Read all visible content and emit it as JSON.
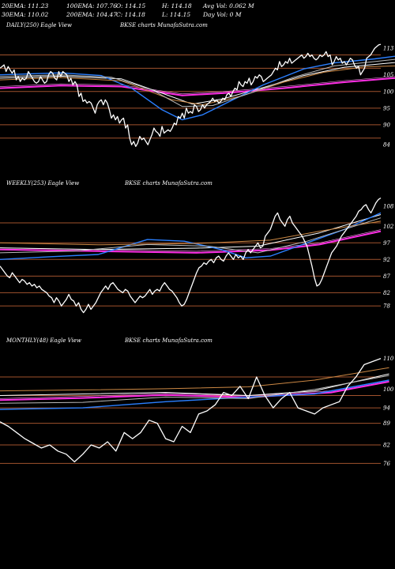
{
  "header": {
    "line1": [
      "20EMA: 111.23",
      "100EMA: 107.76",
      "O: 114.15",
      "H: 114.18",
      "Avg Vol: 0.062  M"
    ],
    "line2": [
      "30EMA: 110.02",
      "200EMA: 104.47",
      "C: 114.18",
      "L: 114.15",
      "Day Vol: 0  M"
    ]
  },
  "panels": [
    {
      "name": "daily",
      "label": "DAILY(250) Eagle  View",
      "watermark": "BKSE charts MunafaSutra.com",
      "ylim": [
        80,
        118
      ],
      "ticks": [
        113,
        105,
        100,
        95,
        90,
        84
      ],
      "gridlines": [
        111,
        107,
        100,
        95,
        90,
        86
      ],
      "price": [
        107,
        107.5,
        108,
        106,
        107.5,
        106.5,
        105.5,
        106.5,
        103.5,
        104.5,
        103,
        104,
        103.5,
        104,
        106,
        105,
        104,
        103,
        102.5,
        103,
        104.5,
        103.5,
        102.5,
        103,
        105,
        106,
        105.5,
        104,
        103.5,
        106,
        104.5,
        106,
        105.5,
        105,
        103,
        104,
        102,
        103,
        102,
        98.5,
        99.5,
        97,
        97.5,
        96.5,
        97,
        96.5,
        95,
        93.5,
        96,
        97,
        97.5,
        96,
        97.5,
        96.5,
        94.5,
        92,
        93,
        91.5,
        92.5,
        90.5,
        91.5,
        92,
        89,
        90,
        86,
        84,
        85,
        83.5,
        84.5,
        86.5,
        85.5,
        86,
        85,
        84,
        85.5,
        87,
        89,
        88,
        87.5,
        86.5,
        89.5,
        87.5,
        88,
        88.5,
        88,
        89,
        90.5,
        90,
        92.5,
        92,
        93.5,
        92,
        95,
        93.5,
        94,
        93.5,
        96,
        95.5,
        94,
        94.5,
        96,
        95,
        96,
        96.5,
        97,
        98,
        97,
        97.5,
        96.5,
        97,
        98,
        97.5,
        99,
        99.5,
        98.5,
        100,
        101,
        100.5,
        103,
        102,
        101.5,
        103,
        102.5,
        104,
        102,
        103,
        104.5,
        104,
        105,
        104.5,
        103,
        103.5,
        104,
        104.5,
        105,
        106,
        107,
        106.5,
        109,
        107.5,
        108,
        109,
        108.5,
        110,
        108.5,
        109,
        109.5,
        110,
        110.5,
        111,
        110,
        110.5,
        111.5,
        110.5,
        111,
        110,
        109.5,
        110,
        111,
        110.5,
        111,
        112,
        110.5,
        111,
        108,
        109,
        110.5,
        109.5,
        110,
        108.5,
        109,
        108,
        109,
        110,
        109.5,
        108,
        107,
        107.5,
        105,
        106,
        107,
        110,
        110.5,
        111,
        112,
        113,
        113.5,
        114,
        114.18
      ],
      "sma": [
        {
          "color": "#ff2ee6",
          "width": 2.0,
          "values": [
            [
              0,
              101
            ],
            [
              30,
              101.8
            ],
            [
              60,
              101.5
            ],
            [
              90,
              98.8
            ],
            [
              110,
              99.5
            ],
            [
              140,
              101
            ],
            [
              170,
              102.8
            ],
            [
              200,
              104.3
            ]
          ]
        },
        {
          "color": "#ffffff",
          "width": 1.0,
          "values": [
            [
              0,
              104
            ],
            [
              30,
              104.6
            ],
            [
              60,
              103.8
            ],
            [
              80,
              99.5
            ],
            [
              95,
              96.2
            ],
            [
              110,
              97.8
            ],
            [
              130,
              101.2
            ],
            [
              150,
              104.8
            ],
            [
              170,
              107.3
            ],
            [
              200,
              109
            ]
          ]
        },
        {
          "color": "#2a7fff",
          "width": 1.4,
          "values": [
            [
              0,
              105
            ],
            [
              30,
              105.6
            ],
            [
              50,
              104.8
            ],
            [
              65,
              101
            ],
            [
              80,
              94.5
            ],
            [
              90,
              91.5
            ],
            [
              100,
              93
            ],
            [
              115,
              97.5
            ],
            [
              130,
              102
            ],
            [
              150,
              106.8
            ],
            [
              165,
              108.6
            ],
            [
              185,
              109.8
            ],
            [
              200,
              111
            ]
          ]
        },
        {
          "color": "#cc8844",
          "width": 1.0,
          "values": [
            [
              0,
              103.5
            ],
            [
              30,
              104.2
            ],
            [
              60,
              103.2
            ],
            [
              85,
              97.5
            ],
            [
              100,
              96
            ],
            [
              120,
              98.8
            ],
            [
              140,
              102.8
            ],
            [
              160,
              105.8
            ],
            [
              180,
              107.4
            ],
            [
              200,
              107.8
            ]
          ]
        },
        {
          "color": "#bbbbbb",
          "width": 1.0,
          "values": [
            [
              0,
              104.5
            ],
            [
              30,
              105
            ],
            [
              55,
              104.3
            ],
            [
              75,
              100.5
            ],
            [
              90,
              95.5
            ],
            [
              105,
              95.8
            ],
            [
              125,
              99.8
            ],
            [
              145,
              104.3
            ],
            [
              165,
              107.7
            ],
            [
              200,
              110
            ]
          ]
        }
      ]
    },
    {
      "name": "weekly",
      "label": "WEEKLY(253) Eagle  View",
      "watermark": "BKSE charts MunafaSutra.com",
      "ylim": [
        74,
        113
      ],
      "ticks": [
        108,
        102,
        97,
        92,
        87,
        82,
        78
      ],
      "gridlines": [
        103,
        97,
        92,
        87,
        82,
        78
      ],
      "price": [
        90,
        89,
        88,
        87,
        86.5,
        88,
        87,
        86,
        85,
        86,
        85.5,
        84.5,
        85,
        84,
        84.5,
        83.5,
        84,
        83,
        82.5,
        82,
        81,
        80.5,
        79,
        80.5,
        79.5,
        78,
        79,
        80,
        81.5,
        80,
        79.5,
        78,
        79,
        77,
        76,
        77,
        78.5,
        77,
        78,
        79,
        80.5,
        82,
        83,
        84,
        83,
        84.5,
        85,
        84,
        83,
        82.5,
        82,
        83,
        82.5,
        81,
        80,
        79,
        80,
        81,
        80.5,
        81,
        82,
        83,
        81.5,
        82.5,
        83,
        82.5,
        84,
        85,
        84,
        83,
        82.5,
        81.5,
        80.5,
        79,
        78,
        78.5,
        80,
        82,
        84,
        86,
        88,
        89.5,
        90,
        91,
        90.5,
        91.5,
        92,
        91,
        92.5,
        93,
        92,
        91.5,
        93,
        94,
        93,
        92,
        93.5,
        92.5,
        93,
        92,
        94,
        95,
        94,
        95,
        96,
        97,
        95.5,
        96,
        99,
        100,
        101,
        103,
        105,
        106,
        104,
        103,
        102,
        104,
        105,
        103,
        102,
        101,
        100,
        99,
        97.5,
        96,
        93,
        90,
        86.5,
        84,
        84.5,
        86,
        88,
        90,
        92,
        94,
        95,
        96,
        97.5,
        99,
        100,
        101,
        102,
        103,
        104,
        105,
        106.5,
        107,
        108,
        108.5,
        107,
        106,
        107.5,
        109,
        110,
        110.5
      ],
      "sma": [
        {
          "color": "#ff2ee6",
          "width": 2.0,
          "values": [
            [
              0,
              95
            ],
            [
              40,
              94.5
            ],
            [
              80,
              94
            ],
            [
              110,
              94.8
            ],
            [
              130,
              96.5
            ],
            [
              155,
              100.5
            ]
          ]
        },
        {
          "color": "#ffffff",
          "width": 1.0,
          "values": [
            [
              0,
              95.5
            ],
            [
              40,
              95
            ],
            [
              80,
              95.4
            ],
            [
              105,
              96
            ],
            [
              130,
              100
            ],
            [
              155,
              105.5
            ]
          ]
        },
        {
          "color": "#2a7fff",
          "width": 1.4,
          "values": [
            [
              0,
              92
            ],
            [
              20,
              92.8
            ],
            [
              40,
              93.5
            ],
            [
              60,
              98
            ],
            [
              75,
              97.5
            ],
            [
              90,
              95
            ],
            [
              100,
              92.5
            ],
            [
              110,
              93
            ],
            [
              125,
              97
            ],
            [
              140,
              101
            ],
            [
              155,
              106
            ]
          ]
        },
        {
          "color": "#cc8844",
          "width": 1.0,
          "values": [
            [
              0,
              97
            ],
            [
              40,
              96.4
            ],
            [
              80,
              96.8
            ],
            [
              110,
              97.8
            ],
            [
              130,
              100.5
            ],
            [
              155,
              103.5
            ]
          ]
        },
        {
          "color": "#bbbbbb",
          "width": 1.0,
          "values": [
            [
              0,
              94
            ],
            [
              30,
              94.5
            ],
            [
              60,
              96.5
            ],
            [
              85,
              96
            ],
            [
              105,
              94
            ],
            [
              125,
              97.5
            ],
            [
              155,
              104.5
            ]
          ]
        }
      ]
    },
    {
      "name": "monthly",
      "label": "MONTHLY(48) Eagle  View",
      "watermark": "BKSE charts MunafaSutra.com",
      "ylim": [
        72,
        114
      ],
      "ticks": [
        110,
        100,
        94,
        89,
        82,
        76
      ],
      "gridlines": [
        104,
        98,
        94,
        89,
        82,
        76
      ],
      "price": [
        89.5,
        88,
        86,
        84,
        82.5,
        81,
        82,
        80,
        79,
        76.5,
        79,
        82,
        81,
        83,
        80,
        86,
        84,
        86,
        90,
        89,
        84,
        83,
        88,
        86,
        92,
        93,
        95,
        99,
        98,
        101,
        97,
        104,
        98,
        94,
        97,
        99,
        94,
        93,
        92,
        94,
        95,
        96,
        101,
        104,
        108,
        109,
        110
      ],
      "sma": [
        {
          "color": "#ff2ee6",
          "width": 2.0,
          "values": [
            [
              0,
              96.5
            ],
            [
              10,
              97.2
            ],
            [
              20,
              98.2
            ],
            [
              30,
              97.4
            ],
            [
              40,
              99
            ],
            [
              47,
              102.5
            ]
          ]
        },
        {
          "color": "#ffffff",
          "width": 1.0,
          "values": [
            [
              0,
              98
            ],
            [
              10,
              98.5
            ],
            [
              20,
              99
            ],
            [
              30,
              98
            ],
            [
              38,
              99.5
            ],
            [
              47,
              105
            ]
          ]
        },
        {
          "color": "#2a7fff",
          "width": 1.4,
          "values": [
            [
              0,
              93.5
            ],
            [
              10,
              94
            ],
            [
              20,
              96
            ],
            [
              30,
              97.5
            ],
            [
              38,
              98.5
            ],
            [
              47,
              103
            ]
          ]
        },
        {
          "color": "#cc8844",
          "width": 1.0,
          "values": [
            [
              0,
              99.5
            ],
            [
              10,
              99.8
            ],
            [
              20,
              100.2
            ],
            [
              30,
              100.8
            ],
            [
              38,
              103
            ],
            [
              47,
              107
            ]
          ]
        },
        {
          "color": "#bbbbbb",
          "width": 1.0,
          "values": [
            [
              0,
              95.5
            ],
            [
              10,
              95.8
            ],
            [
              20,
              97.5
            ],
            [
              30,
              97
            ],
            [
              38,
              100
            ],
            [
              47,
              104.5
            ]
          ]
        }
      ]
    }
  ],
  "chart_data": [
    {
      "type": "line",
      "title": "DAILY(250) Eagle  View",
      "ylim": [
        80,
        118
      ],
      "series_ref": "panels.0"
    },
    {
      "type": "line",
      "title": "WEEKLY(253) Eagle  View",
      "ylim": [
        74,
        113
      ],
      "series_ref": "panels.1"
    },
    {
      "type": "line",
      "title": "MONTHLY(48) Eagle  View",
      "ylim": [
        72,
        114
      ],
      "series_ref": "panels.2"
    }
  ]
}
